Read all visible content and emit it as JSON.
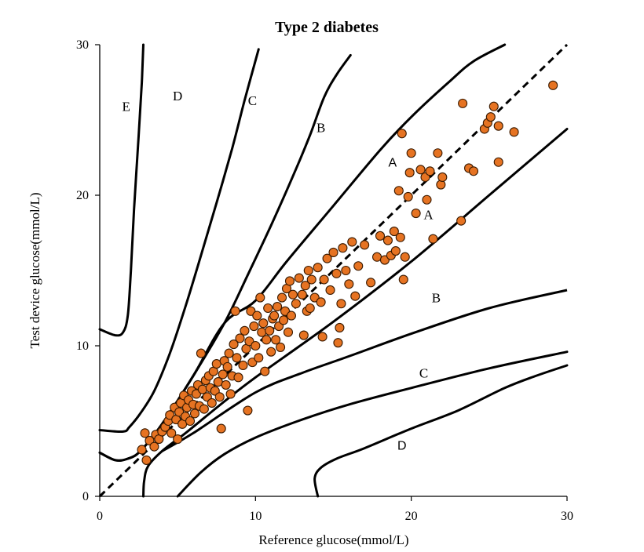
{
  "chart_data": {
    "type": "scatter",
    "title": "Type 2 diabetes",
    "xlabel": "Reference glucose(mmol/L)",
    "ylabel": "Test device glucose(mmol/L)",
    "xlim": [
      0,
      30
    ],
    "ylim": [
      0,
      30
    ],
    "xticks": [
      "0",
      "10",
      "20",
      "30"
    ],
    "yticks": [
      "0",
      "10",
      "20",
      "30"
    ],
    "grid": false,
    "colors": {
      "point_fill": "#e67322",
      "point_stroke": "#3a1a00",
      "line": "#000000"
    },
    "zone_labels": [
      {
        "text": "E",
        "x": 1.7,
        "y": 25.6
      },
      {
        "text": "D",
        "x": 5.0,
        "y": 26.3
      },
      {
        "text": "C",
        "x": 9.8,
        "y": 26.0
      },
      {
        "text": "B",
        "x": 14.2,
        "y": 24.2
      },
      {
        "text": "A",
        "x": 18.8,
        "y": 21.9
      },
      {
        "text": "A",
        "x": 21.1,
        "y": 18.4
      },
      {
        "text": "B",
        "x": 21.6,
        "y": 12.9
      },
      {
        "text": "C",
        "x": 20.8,
        "y": 7.9
      },
      {
        "text": "D",
        "x": 19.4,
        "y": 3.1
      }
    ],
    "identity_line": {
      "from": [
        0,
        0
      ],
      "to": [
        30,
        30
      ],
      "style": "dashed"
    },
    "boundaries": [
      [
        [
          2.8,
          0
        ],
        [
          2.85,
          1.0
        ],
        [
          3.1,
          2.0
        ],
        [
          4.0,
          3.0
        ],
        [
          5.5,
          4.2
        ],
        [
          8,
          6.3
        ],
        [
          10,
          7.9
        ],
        [
          15,
          11.6
        ],
        [
          20,
          15.6
        ],
        [
          25,
          20.0
        ],
        [
          30,
          24.4
        ]
      ],
      [
        [
          0,
          3.3
        ],
        [
          1.0,
          2.8
        ],
        [
          1.8,
          2.7
        ],
        [
          2.6,
          3.1
        ],
        [
          3.8,
          4.3
        ],
        [
          6,
          6.8
        ],
        [
          8,
          9.4
        ],
        [
          10,
          12.0
        ],
        [
          12,
          14.9
        ],
        [
          15,
          19.1
        ],
        [
          20,
          25.2
        ],
        [
          22.5,
          27.6
        ],
        [
          24,
          28.9
        ]
      ],
      [
        [
          5,
          0
        ],
        [
          6.5,
          1.6
        ],
        [
          8,
          2.8
        ],
        [
          10,
          3.9
        ],
        [
          13,
          5.1
        ],
        [
          16,
          6.1
        ],
        [
          20,
          7.2
        ],
        [
          25,
          8.5
        ],
        [
          30,
          9.6
        ],
        [
          30,
          13.7
        ]
      ],
      [
        [
          0,
          2.9
        ],
        [
          1.0,
          2.4
        ],
        [
          1.8,
          2.5
        ],
        [
          2.6,
          3.0
        ],
        [
          4.0,
          4.8
        ],
        [
          6,
          8.0
        ],
        [
          8,
          11.5
        ],
        [
          9.5,
          14.7
        ],
        [
          11,
          18.0
        ],
        [
          12.5,
          21.5
        ],
        [
          13.5,
          24.0
        ],
        [
          14.4,
          26.5
        ],
        [
          15.2,
          28.0
        ],
        [
          16.1,
          29.3
        ]
      ],
      [
        [
          0,
          4.4
        ],
        [
          1.5,
          4.3
        ],
        [
          1.9,
          4.6
        ],
        [
          2.6,
          5.5
        ],
        [
          3.5,
          7.0
        ],
        [
          4.5,
          9.5
        ],
        [
          5.5,
          12.6
        ],
        [
          6.5,
          16.0
        ],
        [
          7.5,
          19.5
        ],
        [
          8.5,
          23.1
        ],
        [
          9.3,
          26.3
        ],
        [
          10.2,
          29.7
        ]
      ],
      [
        [
          0,
          11.1
        ],
        [
          1.0,
          10.7
        ],
        [
          1.5,
          10.9
        ],
        [
          1.8,
          12.0
        ],
        [
          2.0,
          15.0
        ],
        [
          2.2,
          19.0
        ],
        [
          2.5,
          24.0
        ],
        [
          2.7,
          27.5
        ],
        [
          2.8,
          30.0
        ]
      ],
      [
        [
          14,
          0
        ],
        [
          13.8,
          1.2
        ],
        [
          14.2,
          1.9
        ],
        [
          15.2,
          2.5
        ],
        [
          17,
          3.2
        ],
        [
          20,
          4.5
        ],
        [
          23,
          5.7
        ],
        [
          26,
          7.2
        ],
        [
          28,
          8.0
        ],
        [
          30,
          8.7
        ]
      ]
    ],
    "boundary_b_upper": [
      [
        0,
        2.9
      ],
      [
        1.0,
        2.4
      ],
      [
        1.8,
        2.5
      ],
      [
        2.6,
        3.0
      ],
      [
        4.0,
        4.8
      ],
      [
        6,
        8.0
      ],
      [
        8,
        11.5
      ],
      [
        10,
        13.0
      ],
      [
        12,
        15.6
      ],
      [
        15,
        19.3
      ],
      [
        18,
        23.0
      ],
      [
        20,
        25.2
      ],
      [
        22.5,
        27.6
      ],
      [
        24,
        28.9
      ],
      [
        26,
        30
      ]
    ],
    "points": [
      [
        2.7,
        3.1
      ],
      [
        2.9,
        4.2
      ],
      [
        3.0,
        2.4
      ],
      [
        3.2,
        3.7
      ],
      [
        3.5,
        3.3
      ],
      [
        3.6,
        4.1
      ],
      [
        3.8,
        3.8
      ],
      [
        4.0,
        4.3
      ],
      [
        4.2,
        4.6
      ],
      [
        4.4,
        5.0
      ],
      [
        4.5,
        5.4
      ],
      [
        4.6,
        4.2
      ],
      [
        4.8,
        5.9
      ],
      [
        4.9,
        5.1
      ],
      [
        5.0,
        3.8
      ],
      [
        5.1,
        5.6
      ],
      [
        5.2,
        6.2
      ],
      [
        5.3,
        4.8
      ],
      [
        5.4,
        6.7
      ],
      [
        5.5,
        5.3
      ],
      [
        5.6,
        5.9
      ],
      [
        5.7,
        6.4
      ],
      [
        5.8,
        5.0
      ],
      [
        5.9,
        7.0
      ],
      [
        6.0,
        6.1
      ],
      [
        6.1,
        5.5
      ],
      [
        6.2,
        6.8
      ],
      [
        6.3,
        7.4
      ],
      [
        6.4,
        6.0
      ],
      [
        6.5,
        9.5
      ],
      [
        6.6,
        7.1
      ],
      [
        6.7,
        5.8
      ],
      [
        6.8,
        7.7
      ],
      [
        6.9,
        6.6
      ],
      [
        7.0,
        8.0
      ],
      [
        7.1,
        7.2
      ],
      [
        7.2,
        6.2
      ],
      [
        7.3,
        8.3
      ],
      [
        7.4,
        7.0
      ],
      [
        7.5,
        8.8
      ],
      [
        7.6,
        7.6
      ],
      [
        7.7,
        6.6
      ],
      [
        7.8,
        4.5
      ],
      [
        7.9,
        8.1
      ],
      [
        8.0,
        9.0
      ],
      [
        8.1,
        7.4
      ],
      [
        8.2,
        8.6
      ],
      [
        8.3,
        9.5
      ],
      [
        8.4,
        6.8
      ],
      [
        8.5,
        8.0
      ],
      [
        8.6,
        10.1
      ],
      [
        8.7,
        12.3
      ],
      [
        8.8,
        9.2
      ],
      [
        8.9,
        7.9
      ],
      [
        9.0,
        10.5
      ],
      [
        9.2,
        8.7
      ],
      [
        9.3,
        11.0
      ],
      [
        9.4,
        9.8
      ],
      [
        9.5,
        5.7
      ],
      [
        9.6,
        10.3
      ],
      [
        9.7,
        12.3
      ],
      [
        9.8,
        8.9
      ],
      [
        9.9,
        11.3
      ],
      [
        10.0,
        10.0
      ],
      [
        10.1,
        12.0
      ],
      [
        10.2,
        9.2
      ],
      [
        10.3,
        13.2
      ],
      [
        10.4,
        10.9
      ],
      [
        10.5,
        11.5
      ],
      [
        10.6,
        8.3
      ],
      [
        10.7,
        10.4
      ],
      [
        10.8,
        12.5
      ],
      [
        10.9,
        11.0
      ],
      [
        11.0,
        9.6
      ],
      [
        11.1,
        11.8
      ],
      [
        11.2,
        12.0
      ],
      [
        11.3,
        10.4
      ],
      [
        11.4,
        12.6
      ],
      [
        11.5,
        11.3
      ],
      [
        11.6,
        9.9
      ],
      [
        11.7,
        13.2
      ],
      [
        11.8,
        11.7
      ],
      [
        11.9,
        12.3
      ],
      [
        12.0,
        13.8
      ],
      [
        12.1,
        10.9
      ],
      [
        12.2,
        14.3
      ],
      [
        12.3,
        12.0
      ],
      [
        12.4,
        13.4
      ],
      [
        12.6,
        12.8
      ],
      [
        12.8,
        14.5
      ],
      [
        13.0,
        13.4
      ],
      [
        13.1,
        10.7
      ],
      [
        13.2,
        14.0
      ],
      [
        13.3,
        12.3
      ],
      [
        13.4,
        15.0
      ],
      [
        13.5,
        12.5
      ],
      [
        13.6,
        14.4
      ],
      [
        13.8,
        13.2
      ],
      [
        14.0,
        15.2
      ],
      [
        14.2,
        12.9
      ],
      [
        14.3,
        10.6
      ],
      [
        14.4,
        14.4
      ],
      [
        14.6,
        15.8
      ],
      [
        14.8,
        13.7
      ],
      [
        15.0,
        16.2
      ],
      [
        15.2,
        14.8
      ],
      [
        15.3,
        10.2
      ],
      [
        15.4,
        11.2
      ],
      [
        15.5,
        12.8
      ],
      [
        15.6,
        16.5
      ],
      [
        15.8,
        15.0
      ],
      [
        16.0,
        14.1
      ],
      [
        16.2,
        16.9
      ],
      [
        16.4,
        13.3
      ],
      [
        16.6,
        15.3
      ],
      [
        17.0,
        16.7
      ],
      [
        17.4,
        14.2
      ],
      [
        17.8,
        15.9
      ],
      [
        18.0,
        17.3
      ],
      [
        18.3,
        15.7
      ],
      [
        18.5,
        17.0
      ],
      [
        18.7,
        16.0
      ],
      [
        18.9,
        17.6
      ],
      [
        19.0,
        16.3
      ],
      [
        19.2,
        20.3
      ],
      [
        19.3,
        17.2
      ],
      [
        19.4,
        24.1
      ],
      [
        19.5,
        14.4
      ],
      [
        19.6,
        15.9
      ],
      [
        19.8,
        19.9
      ],
      [
        19.9,
        21.5
      ],
      [
        20.0,
        22.8
      ],
      [
        20.3,
        18.8
      ],
      [
        20.6,
        21.7
      ],
      [
        20.9,
        21.2
      ],
      [
        21.0,
        19.7
      ],
      [
        21.2,
        21.6
      ],
      [
        21.4,
        17.1
      ],
      [
        21.7,
        22.8
      ],
      [
        21.9,
        20.7
      ],
      [
        22.0,
        21.2
      ],
      [
        23.2,
        18.3
      ],
      [
        23.3,
        26.1
      ],
      [
        23.7,
        21.8
      ],
      [
        24.0,
        21.6
      ],
      [
        24.7,
        24.4
      ],
      [
        24.9,
        24.8
      ],
      [
        25.1,
        25.2
      ],
      [
        25.3,
        25.9
      ],
      [
        25.6,
        24.6
      ],
      [
        25.6,
        22.2
      ],
      [
        26.6,
        24.2
      ],
      [
        29.1,
        27.3
      ]
    ]
  }
}
